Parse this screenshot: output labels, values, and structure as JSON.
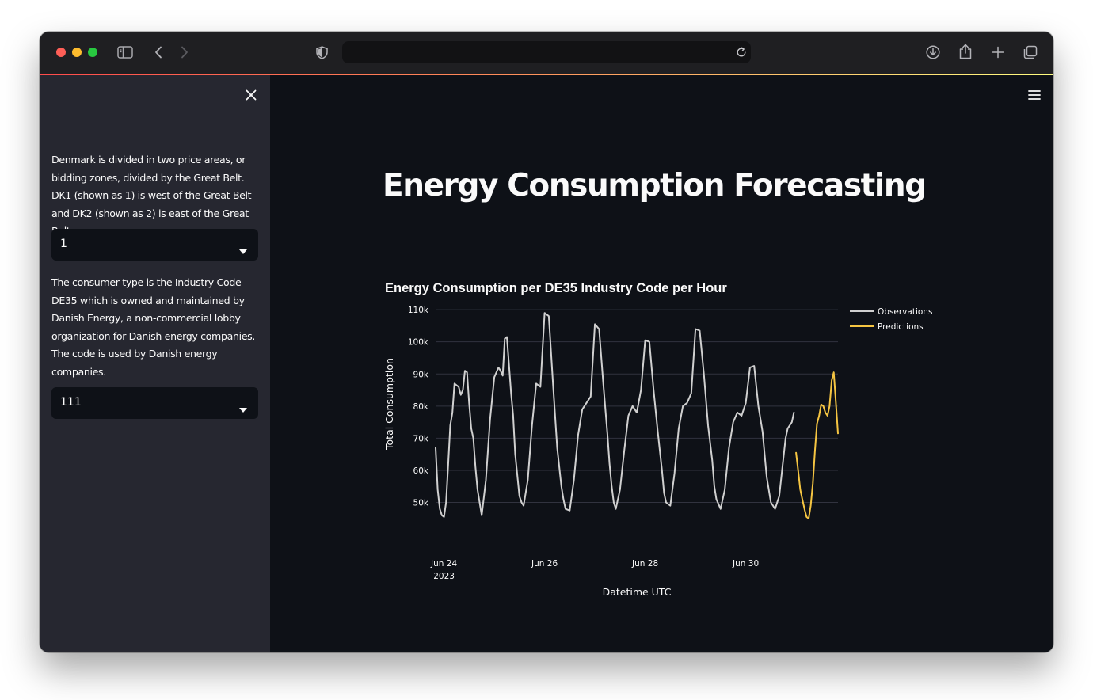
{
  "sidebar": {
    "price_area_help": "Denmark is divided in two price areas, or bidding zones, divided by the Great Belt. DK1 (shown as 1) is west of the Great Belt and DK2 (shown as 2) is east of the Great Belt.",
    "price_area_value": "1",
    "consumer_type_help": "The consumer type is the Industry Code DE35 which is owned and maintained by Danish Energy, a non-commercial lobby organization for Danish energy companies. The code is used by Danish energy companies.",
    "consumer_type_value": "111"
  },
  "main": {
    "title": "Energy Consumption Forecasting"
  },
  "icons": {
    "close": "close-icon",
    "menu": "hamburger-menu-icon",
    "caret": "caret-down-icon",
    "sidebar_toggle": "sidebar-toggle-icon",
    "back": "chevron-left-icon",
    "forward": "chevron-right-icon",
    "shield": "shield-icon",
    "reload": "reload-icon",
    "download": "download-icon",
    "share": "share-icon",
    "new_tab": "plus-icon",
    "tabs": "tabs-overview-icon"
  },
  "colors": {
    "observations": "#d0d0d0",
    "predictions": "#f5c542",
    "accent_start": "#ff4b4b",
    "accent_end": "#fffd80"
  },
  "chart_data": {
    "type": "line",
    "title": "Energy Consumption per DE35 Industry Code per Hour",
    "xlabel": "Datetime UTC",
    "ylabel": "Total Consumption",
    "x_ticks": [
      {
        "date": "2023-06-24",
        "label": "Jun 24",
        "sublabel": "2023"
      },
      {
        "date": "2023-06-26",
        "label": "Jun 26",
        "sublabel": ""
      },
      {
        "date": "2023-06-28",
        "label": "Jun 28",
        "sublabel": ""
      },
      {
        "date": "2023-06-30",
        "label": "Jun 30",
        "sublabel": ""
      }
    ],
    "y_ticks": [
      {
        "value": 50000,
        "label": "50k"
      },
      {
        "value": 60000,
        "label": "60k"
      },
      {
        "value": 70000,
        "label": "70k"
      },
      {
        "value": 80000,
        "label": "80k"
      },
      {
        "value": 90000,
        "label": "90k"
      },
      {
        "value": 100000,
        "label": "100k"
      },
      {
        "value": 110000,
        "label": "110k"
      }
    ],
    "xlim": [
      "2023-06-23 20:00",
      "2023-07-01 20:00"
    ],
    "ylim": [
      42000,
      112000
    ],
    "grid": "horizontal",
    "legend": "right",
    "series": [
      {
        "name": "Observations",
        "x": [
          "2023-06-23 20:00",
          "2023-06-23 21:00",
          "2023-06-23 22:00",
          "2023-06-23 23:00",
          "2023-06-24 00:00",
          "2023-06-24 01:00",
          "2023-06-24 02:00",
          "2023-06-24 03:00",
          "2023-06-24 04:00",
          "2023-06-24 05:00",
          "2023-06-24 06:00",
          "2023-06-24 07:00",
          "2023-06-24 08:00",
          "2023-06-24 09:00",
          "2023-06-24 10:00",
          "2023-06-24 11:00",
          "2023-06-24 12:00",
          "2023-06-24 13:00",
          "2023-06-24 14:00",
          "2023-06-24 15:00",
          "2023-06-24 16:00",
          "2023-06-24 18:00",
          "2023-06-24 20:00",
          "2023-06-24 22:00",
          "2023-06-25 00:00",
          "2023-06-25 02:00",
          "2023-06-25 03:00",
          "2023-06-25 04:00",
          "2023-06-25 05:00",
          "2023-06-25 06:00",
          "2023-06-25 07:00",
          "2023-06-25 08:00",
          "2023-06-25 09:00",
          "2023-06-25 10:00",
          "2023-06-25 12:00",
          "2023-06-25 13:00",
          "2023-06-25 14:00",
          "2023-06-25 16:00",
          "2023-06-25 18:00",
          "2023-06-25 20:00",
          "2023-06-25 22:00",
          "2023-06-26 00:00",
          "2023-06-26 02:00",
          "2023-06-26 04:00",
          "2023-06-26 06:00",
          "2023-06-26 08:00",
          "2023-06-26 09:00",
          "2023-06-26 10:00",
          "2023-06-26 12:00",
          "2023-06-26 14:00",
          "2023-06-26 16:00",
          "2023-06-26 18:00",
          "2023-06-26 20:00",
          "2023-06-26 22:00",
          "2023-06-27 00:00",
          "2023-06-27 02:00",
          "2023-06-27 04:00",
          "2023-06-27 06:00",
          "2023-06-27 07:00",
          "2023-06-27 08:00",
          "2023-06-27 09:00",
          "2023-06-27 10:00",
          "2023-06-27 12:00",
          "2023-06-27 14:00",
          "2023-06-27 16:00",
          "2023-06-27 18:00",
          "2023-06-27 20:00",
          "2023-06-27 22:00",
          "2023-06-28 00:00",
          "2023-06-28 02:00",
          "2023-06-28 04:00",
          "2023-06-28 06:00",
          "2023-06-28 08:00",
          "2023-06-28 09:00",
          "2023-06-28 10:00",
          "2023-06-28 12:00",
          "2023-06-28 14:00",
          "2023-06-28 16:00",
          "2023-06-28 18:00",
          "2023-06-28 20:00",
          "2023-06-28 22:00",
          "2023-06-29 00:00",
          "2023-06-29 02:00",
          "2023-06-29 04:00",
          "2023-06-29 06:00",
          "2023-06-29 08:00",
          "2023-06-29 09:00",
          "2023-06-29 10:00",
          "2023-06-29 12:00",
          "2023-06-29 14:00",
          "2023-06-29 16:00",
          "2023-06-29 18:00",
          "2023-06-29 20:00",
          "2023-06-29 22:00",
          "2023-06-30 00:00",
          "2023-06-30 02:00",
          "2023-06-30 04:00",
          "2023-06-30 06:00",
          "2023-06-30 08:00",
          "2023-06-30 09:00",
          "2023-06-30 10:00",
          "2023-06-30 12:00",
          "2023-06-30 14:00",
          "2023-06-30 16:00",
          "2023-06-30 18:00",
          "2023-06-30 19:00",
          "2023-06-30 20:00",
          "2023-06-30 21:00",
          "2023-06-30 22:00",
          "2023-06-30 23:00"
        ],
        "y": [
          67000,
          54000,
          48000,
          46000,
          45500,
          50000,
          62000,
          74000,
          78000,
          87000,
          86500,
          86000,
          83500,
          85000,
          91000,
          90500,
          81000,
          73000,
          70000,
          61000,
          54000,
          46000,
          57000,
          76000,
          89000,
          92000,
          91000,
          89500,
          101000,
          101500,
          93000,
          84000,
          77000,
          65000,
          52000,
          50000,
          49000,
          57000,
          74000,
          87000,
          86000,
          109000,
          108000,
          87000,
          67000,
          55000,
          51000,
          48000,
          47500,
          57000,
          71000,
          79000,
          81000,
          83000,
          105500,
          104000,
          87000,
          71000,
          62000,
          55000,
          50000,
          48000,
          54000,
          66000,
          77000,
          80000,
          78000,
          85000,
          100500,
          100000,
          85000,
          72000,
          60000,
          53000,
          50000,
          49000,
          59000,
          73000,
          80000,
          81000,
          84000,
          104000,
          103500,
          90000,
          74000,
          63000,
          55000,
          51000,
          48000,
          54000,
          67000,
          75000,
          78000,
          77000,
          81000,
          92000,
          92500,
          80000,
          72000,
          65000,
          58000,
          50000,
          48000,
          52000,
          64000,
          70000,
          73000,
          74000,
          75000,
          78000
        ],
        "color": "#d0d0d0"
      },
      {
        "name": "Predictions",
        "x": [
          "2023-07-01 00:00",
          "2023-07-01 01:00",
          "2023-07-01 02:00",
          "2023-07-01 03:00",
          "2023-07-01 04:00",
          "2023-07-01 05:00",
          "2023-07-01 06:00",
          "2023-07-01 07:00",
          "2023-07-01 08:00",
          "2023-07-01 09:00",
          "2023-07-01 10:00",
          "2023-07-01 11:00",
          "2023-07-01 12:00",
          "2023-07-01 13:00",
          "2023-07-01 14:00",
          "2023-07-01 15:00",
          "2023-07-01 16:00",
          "2023-07-01 17:00",
          "2023-07-01 18:00",
          "2023-07-01 19:00",
          "2023-07-01 20:00"
        ],
        "y": [
          65500,
          60000,
          54000,
          51000,
          48000,
          45500,
          45000,
          49000,
          56000,
          66000,
          74500,
          77000,
          80500,
          80000,
          78000,
          77000,
          80000,
          88000,
          90500,
          81000,
          71500
        ],
        "color": "#f5c542"
      }
    ]
  }
}
